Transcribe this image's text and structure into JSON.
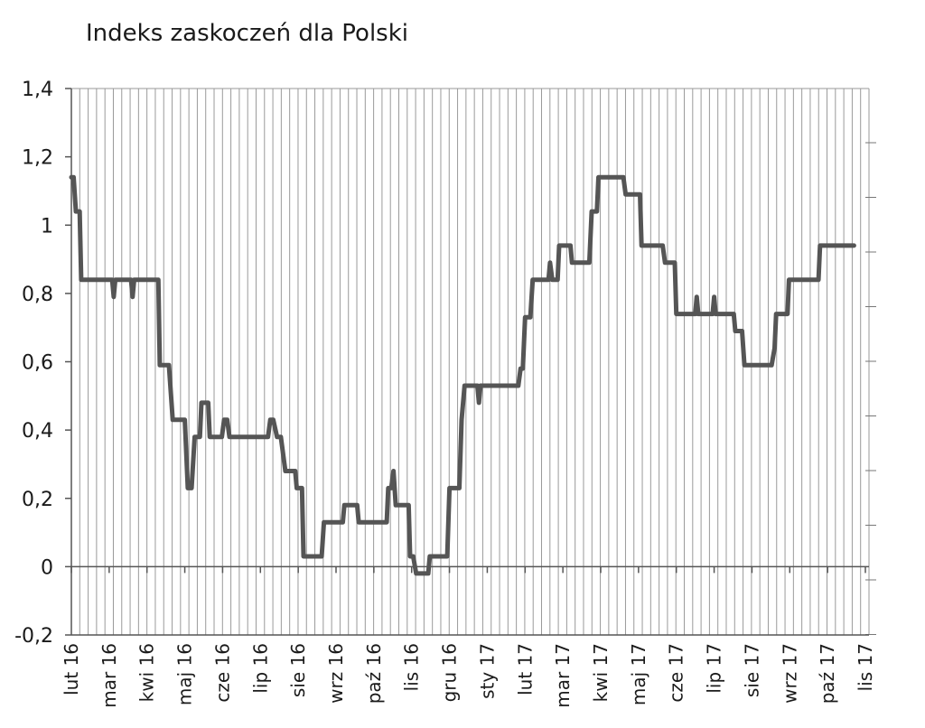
{
  "chart_data": {
    "type": "line",
    "title": "Indeks zaskoczeń dla Polski",
    "xlabel": "",
    "ylabel": "",
    "ylim": [
      -0.2,
      1.4
    ],
    "yticks": [
      -0.2,
      0,
      0.2,
      0.4,
      0.6,
      0.8,
      1,
      1.2,
      1.4
    ],
    "ytick_labels": [
      "-0,2",
      "0",
      "0,2",
      "0,4",
      "0,6",
      "0,8",
      "1",
      "1,2",
      "1,4"
    ],
    "xtick_labels": [
      "lut 16",
      "mar 16",
      "kwi 16",
      "maj 16",
      "cze 16",
      "lip 16",
      "sie 16",
      "wrz 16",
      "paź 16",
      "lis 16",
      "gru 16",
      "sty 17",
      "lut 17",
      "mar 17",
      "kwi 17",
      "maj 17",
      "cze 17",
      "lip 17",
      "sie 17",
      "wrz 17",
      "paź 17",
      "lis 17"
    ],
    "xlim": [
      0,
      21
    ],
    "grid": "vertical",
    "legend": "none",
    "series": [
      {
        "color": "#555555",
        "points": [
          [
            0.0,
            1.14
          ],
          [
            0.06,
            1.14
          ],
          [
            0.12,
            1.04
          ],
          [
            0.22,
            1.04
          ],
          [
            0.26,
            0.84
          ],
          [
            1.08,
            0.84
          ],
          [
            1.12,
            0.79
          ],
          [
            1.16,
            0.84
          ],
          [
            1.58,
            0.84
          ],
          [
            1.62,
            0.79
          ],
          [
            1.66,
            0.84
          ],
          [
            2.3,
            0.84
          ],
          [
            2.34,
            0.59
          ],
          [
            2.58,
            0.59
          ],
          [
            2.68,
            0.43
          ],
          [
            3.0,
            0.43
          ],
          [
            3.08,
            0.23
          ],
          [
            3.18,
            0.23
          ],
          [
            3.26,
            0.38
          ],
          [
            3.4,
            0.38
          ],
          [
            3.44,
            0.48
          ],
          [
            3.62,
            0.48
          ],
          [
            3.66,
            0.38
          ],
          [
            3.98,
            0.38
          ],
          [
            4.04,
            0.43
          ],
          [
            4.12,
            0.43
          ],
          [
            4.18,
            0.38
          ],
          [
            5.2,
            0.38
          ],
          [
            5.26,
            0.43
          ],
          [
            5.34,
            0.43
          ],
          [
            5.44,
            0.38
          ],
          [
            5.54,
            0.38
          ],
          [
            5.6,
            0.33
          ],
          [
            5.66,
            0.28
          ],
          [
            5.92,
            0.28
          ],
          [
            5.96,
            0.23
          ],
          [
            6.1,
            0.23
          ],
          [
            6.14,
            0.03
          ],
          [
            6.62,
            0.03
          ],
          [
            6.68,
            0.13
          ],
          [
            7.18,
            0.13
          ],
          [
            7.22,
            0.18
          ],
          [
            7.56,
            0.18
          ],
          [
            7.6,
            0.13
          ],
          [
            8.34,
            0.13
          ],
          [
            8.38,
            0.23
          ],
          [
            8.46,
            0.23
          ],
          [
            8.52,
            0.28
          ],
          [
            8.58,
            0.18
          ],
          [
            8.92,
            0.18
          ],
          [
            8.96,
            0.03
          ],
          [
            9.04,
            0.03
          ],
          [
            9.12,
            -0.02
          ],
          [
            9.44,
            -0.02
          ],
          [
            9.48,
            0.03
          ],
          [
            9.94,
            0.03
          ],
          [
            10.0,
            0.23
          ],
          [
            10.26,
            0.23
          ],
          [
            10.32,
            0.43
          ],
          [
            10.4,
            0.53
          ],
          [
            10.74,
            0.53
          ],
          [
            10.78,
            0.48
          ],
          [
            10.82,
            0.53
          ],
          [
            11.82,
            0.53
          ],
          [
            11.88,
            0.58
          ],
          [
            11.94,
            0.58
          ],
          [
            12.0,
            0.73
          ],
          [
            12.14,
            0.73
          ],
          [
            12.2,
            0.84
          ],
          [
            12.62,
            0.84
          ],
          [
            12.66,
            0.89
          ],
          [
            12.72,
            0.84
          ],
          [
            12.86,
            0.84
          ],
          [
            12.9,
            0.94
          ],
          [
            13.2,
            0.94
          ],
          [
            13.24,
            0.89
          ],
          [
            13.7,
            0.89
          ],
          [
            13.76,
            1.04
          ],
          [
            13.9,
            1.04
          ],
          [
            13.94,
            1.14
          ],
          [
            14.6,
            1.14
          ],
          [
            14.66,
            1.09
          ],
          [
            15.04,
            1.09
          ],
          [
            15.08,
            0.94
          ],
          [
            15.64,
            0.94
          ],
          [
            15.7,
            0.89
          ],
          [
            15.96,
            0.89
          ],
          [
            16.0,
            0.74
          ],
          [
            16.5,
            0.74
          ],
          [
            16.54,
            0.79
          ],
          [
            16.58,
            0.74
          ],
          [
            16.96,
            0.74
          ],
          [
            17.0,
            0.79
          ],
          [
            17.04,
            0.74
          ],
          [
            17.52,
            0.74
          ],
          [
            17.56,
            0.69
          ],
          [
            17.74,
            0.69
          ],
          [
            17.8,
            0.59
          ],
          [
            18.52,
            0.59
          ],
          [
            18.6,
            0.64
          ],
          [
            18.64,
            0.74
          ],
          [
            18.94,
            0.74
          ],
          [
            18.98,
            0.84
          ],
          [
            19.76,
            0.84
          ],
          [
            19.8,
            0.94
          ],
          [
            20.7,
            0.94
          ]
        ]
      }
    ]
  }
}
